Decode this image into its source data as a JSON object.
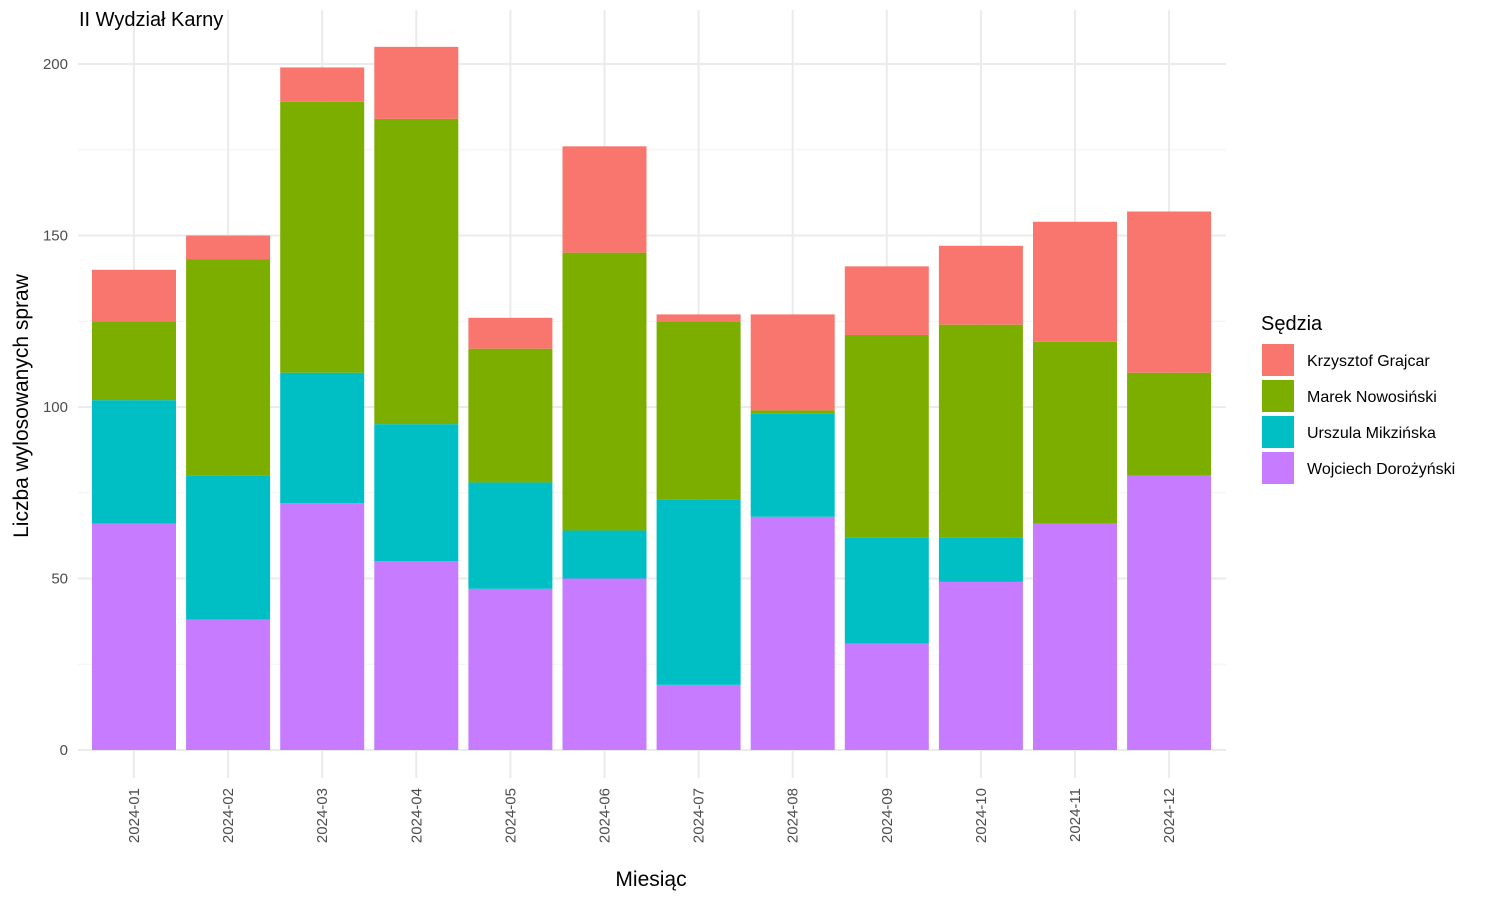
{
  "chart_data": {
    "type": "bar",
    "stacked": true,
    "title": "II Wydział Karny",
    "xlabel": "Miesiąc",
    "ylabel": "Liczba wylosowanych spraw",
    "ylim": [
      0,
      210
    ],
    "yticks": [
      0,
      50,
      100,
      150,
      200
    ],
    "grid": true,
    "legend_title": "Sędzia",
    "legend_position": "right",
    "categories": [
      "2024-01",
      "2024-02",
      "2024-03",
      "2024-04",
      "2024-05",
      "2024-06",
      "2024-07",
      "2024-08",
      "2024-09",
      "2024-10",
      "2024-11",
      "2024-12"
    ],
    "series": [
      {
        "name": "Wojciech Dorożyński",
        "color": "#C77CFF",
        "values": [
          66,
          38,
          72,
          55,
          47,
          50,
          19,
          68,
          31,
          49,
          66,
          80
        ]
      },
      {
        "name": "Urszula Mikzińska",
        "color": "#00BFC4",
        "values": [
          36,
          42,
          38,
          40,
          31,
          14,
          54,
          30,
          31,
          13,
          0,
          0
        ]
      },
      {
        "name": "Marek Nowosiński",
        "color": "#7CAE00",
        "values": [
          23,
          63,
          79,
          89,
          39,
          81,
          52,
          1,
          59,
          62,
          53,
          30
        ]
      },
      {
        "name": "Krzysztof Grajcar",
        "color": "#F8766D",
        "values": [
          15,
          7,
          10,
          21,
          9,
          31,
          2,
          28,
          20,
          23,
          35,
          47
        ]
      }
    ]
  }
}
